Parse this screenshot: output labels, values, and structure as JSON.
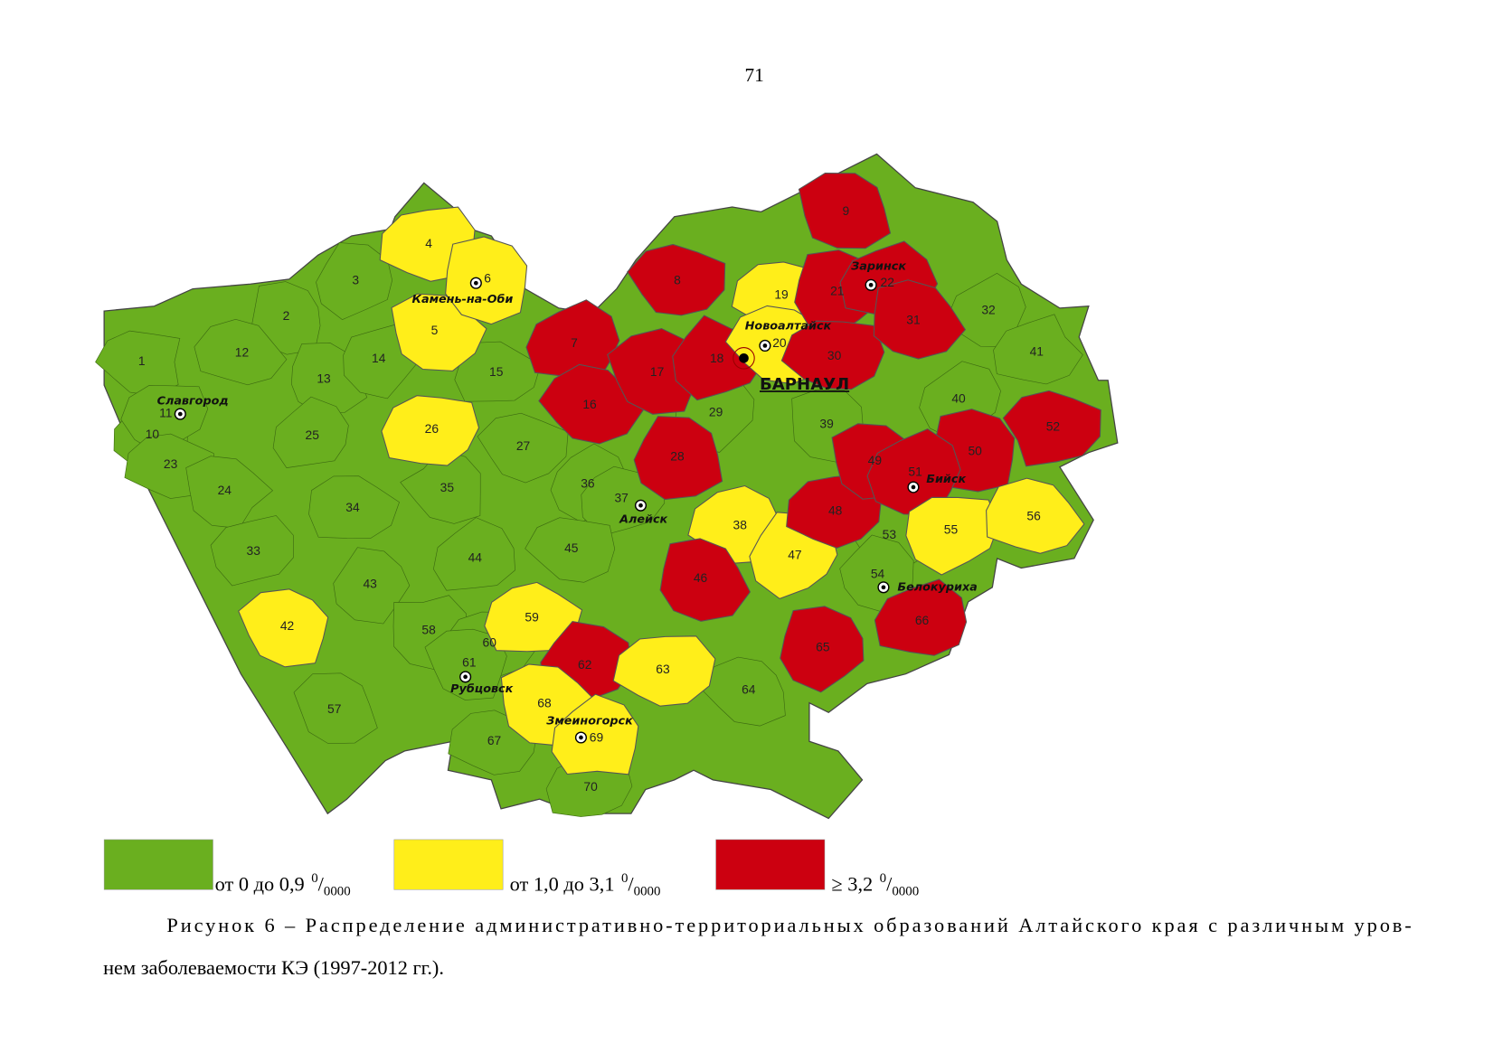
{
  "page_number": "71",
  "map": {
    "regions": [
      {
        "label": "1",
        "color": "#6aaf1f"
      },
      {
        "label": "2",
        "color": "#6aaf1f"
      },
      {
        "label": "3",
        "color": "#6aaf1f"
      },
      {
        "label": "4",
        "color": "#ffee1a"
      },
      {
        "label": "5",
        "color": "#ffee1a"
      },
      {
        "label": "6",
        "color": "#ffee1a"
      },
      {
        "label": "7",
        "color": "#cc0010"
      },
      {
        "label": "8",
        "color": "#cc0010"
      },
      {
        "label": "9",
        "color": "#cc0010"
      },
      {
        "label": "10",
        "color": "#6aaf1f"
      },
      {
        "label": "11",
        "color": "#6aaf1f"
      },
      {
        "label": "12",
        "color": "#6aaf1f"
      },
      {
        "label": "13",
        "color": "#6aaf1f"
      },
      {
        "label": "14",
        "color": "#6aaf1f"
      },
      {
        "label": "15",
        "color": "#6aaf1f"
      },
      {
        "label": "16",
        "color": "#cc0010"
      },
      {
        "label": "17",
        "color": "#cc0010"
      },
      {
        "label": "18",
        "color": "#cc0010"
      },
      {
        "label": "19",
        "color": "#ffee1a"
      },
      {
        "label": "20",
        "color": "#ffee1a"
      },
      {
        "label": "21",
        "color": "#cc0010"
      },
      {
        "label": "22",
        "color": "#cc0010"
      },
      {
        "label": "23",
        "color": "#6aaf1f"
      },
      {
        "label": "24",
        "color": "#6aaf1f"
      },
      {
        "label": "25",
        "color": "#6aaf1f"
      },
      {
        "label": "26",
        "color": "#ffee1a"
      },
      {
        "label": "27",
        "color": "#6aaf1f"
      },
      {
        "label": "28",
        "color": "#cc0010"
      },
      {
        "label": "29",
        "color": "#6aaf1f"
      },
      {
        "label": "30",
        "color": "#cc0010"
      },
      {
        "label": "31",
        "color": "#cc0010"
      },
      {
        "label": "32",
        "color": "#6aaf1f"
      },
      {
        "label": "33",
        "color": "#6aaf1f"
      },
      {
        "label": "34",
        "color": "#6aaf1f"
      },
      {
        "label": "35",
        "color": "#6aaf1f"
      },
      {
        "label": "36",
        "color": "#6aaf1f"
      },
      {
        "label": "37",
        "color": "#6aaf1f"
      },
      {
        "label": "38",
        "color": "#ffee1a"
      },
      {
        "label": "39",
        "color": "#6aaf1f"
      },
      {
        "label": "40",
        "color": "#6aaf1f"
      },
      {
        "label": "41",
        "color": "#6aaf1f"
      },
      {
        "label": "42",
        "color": "#ffee1a"
      },
      {
        "label": "43",
        "color": "#6aaf1f"
      },
      {
        "label": "44",
        "color": "#6aaf1f"
      },
      {
        "label": "45",
        "color": "#6aaf1f"
      },
      {
        "label": "46",
        "color": "#cc0010"
      },
      {
        "label": "47",
        "color": "#ffee1a"
      },
      {
        "label": "48",
        "color": "#cc0010"
      },
      {
        "label": "49",
        "color": "#cc0010"
      },
      {
        "label": "50",
        "color": "#cc0010"
      },
      {
        "label": "51",
        "color": "#cc0010"
      },
      {
        "label": "52",
        "color": "#cc0010"
      },
      {
        "label": "53",
        "color": "#6aaf1f"
      },
      {
        "label": "54",
        "color": "#6aaf1f"
      },
      {
        "label": "55",
        "color": "#ffee1a"
      },
      {
        "label": "56",
        "color": "#ffee1a"
      },
      {
        "label": "57",
        "color": "#6aaf1f"
      },
      {
        "label": "58",
        "color": "#6aaf1f"
      },
      {
        "label": "59",
        "color": "#ffee1a"
      },
      {
        "label": "60",
        "color": "#6aaf1f"
      },
      {
        "label": "61",
        "color": "#6aaf1f"
      },
      {
        "label": "62",
        "color": "#cc0010"
      },
      {
        "label": "63",
        "color": "#ffee1a"
      },
      {
        "label": "64",
        "color": "#6aaf1f"
      },
      {
        "label": "65",
        "color": "#cc0010"
      },
      {
        "label": "66",
        "color": "#cc0010"
      },
      {
        "label": "67",
        "color": "#6aaf1f"
      },
      {
        "label": "68",
        "color": "#ffee1a"
      },
      {
        "label": "69",
        "color": "#ffee1a"
      },
      {
        "label": "70",
        "color": "#6aaf1f"
      }
    ],
    "cities": [
      "Камень-на-Оби",
      "Славгород",
      "Новоалтайск",
      "Заринск",
      "Бийск",
      "Алейск",
      "Белокуриха",
      "Рубцовск",
      "Змеиногорск"
    ],
    "capital": "БАРНАУЛ"
  },
  "legend": [
    {
      "color": "#6aaf1f",
      "text": "от 0 до 0,9",
      "sup": "0",
      "slash": "/",
      "sub": "0000"
    },
    {
      "color": "#ffee1a",
      "text": "от 1,0 до 3,1",
      "sup": "0",
      "slash": "/",
      "sub": "0000"
    },
    {
      "color": "#cc0010",
      "text": "≥ 3,2",
      "sup": "0",
      "slash": "/",
      "sub": "0000"
    }
  ],
  "caption": {
    "line1": "Рисунок 6 – Распределение административно-территориальных образований Алтайского края с различным уров-",
    "line2": "нем заболеваемости КЭ (1997-2012 гг.)."
  }
}
